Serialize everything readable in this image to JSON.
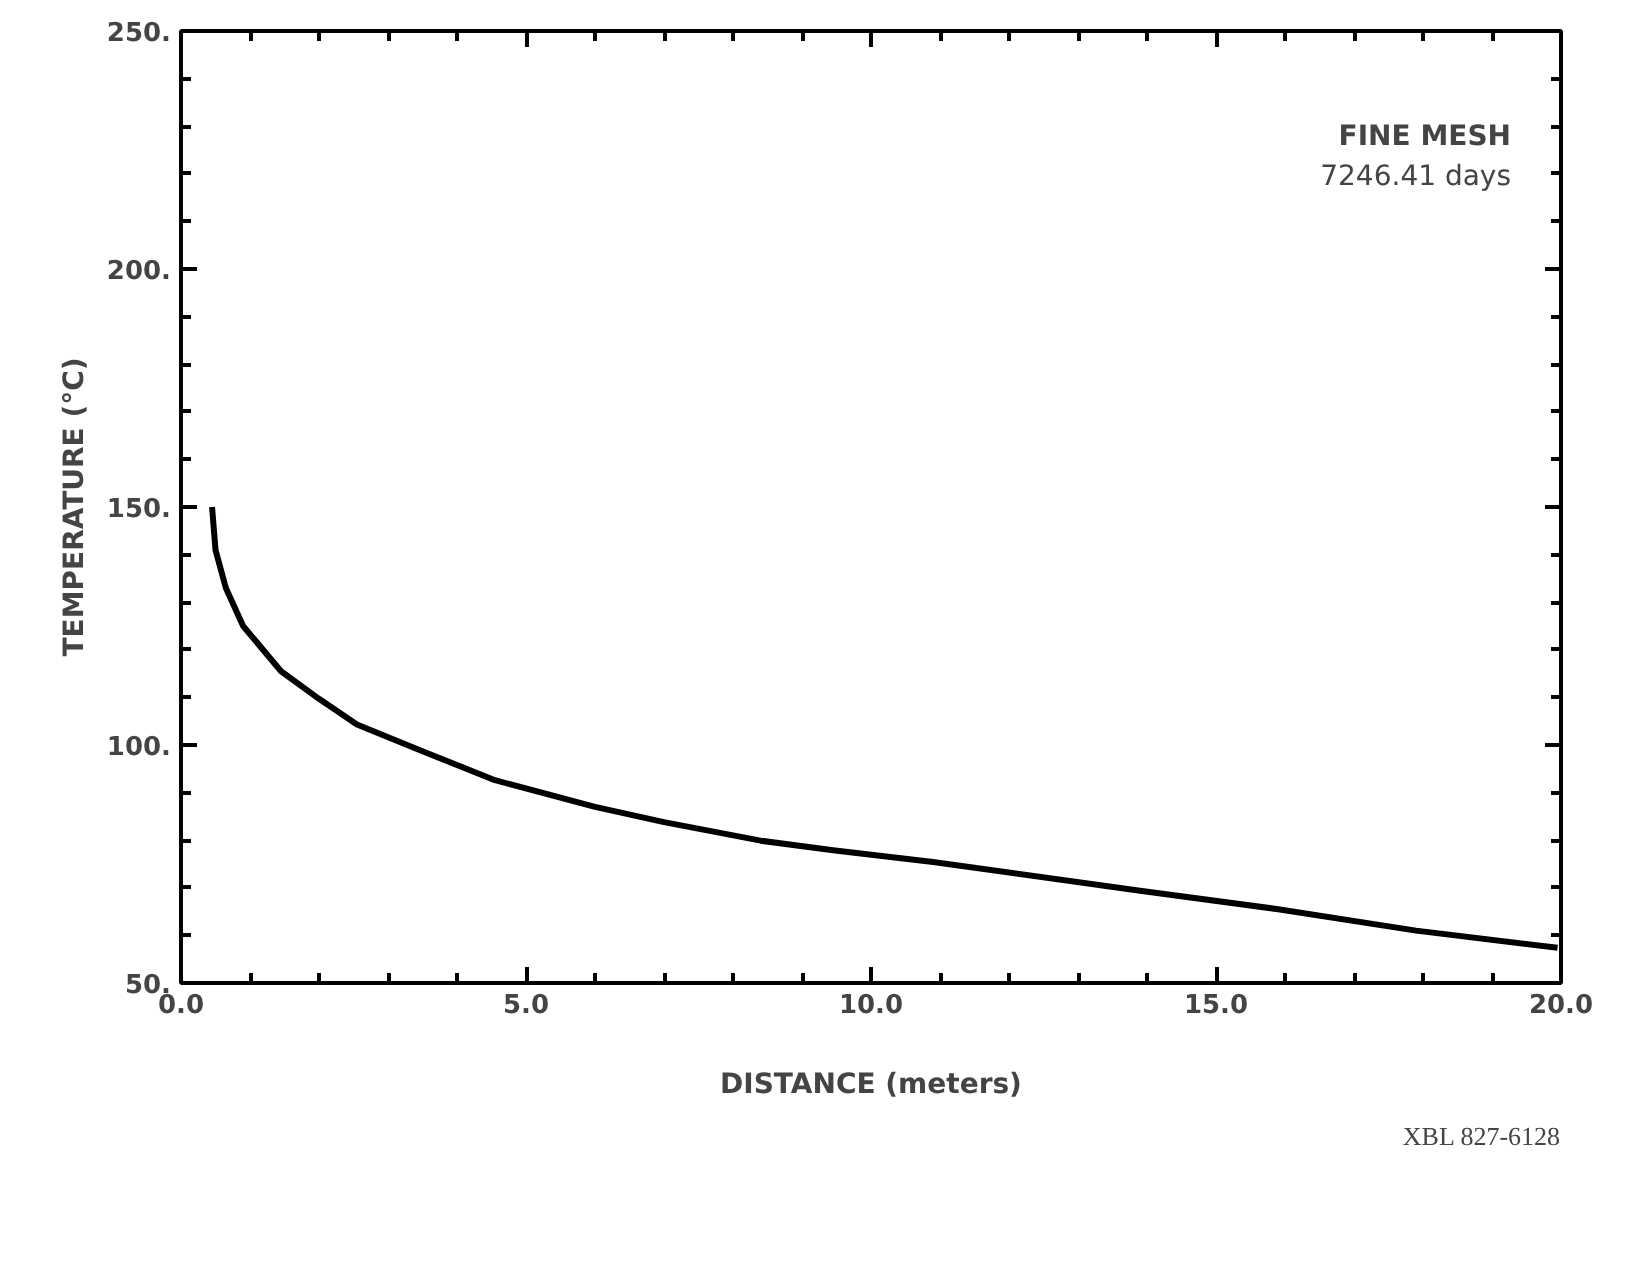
{
  "chart_data": {
    "type": "line",
    "xlabel": "DISTANCE (meters)",
    "ylabel": "TEMPERATURE (°C)",
    "x": [
      0.45,
      0.45,
      0.5,
      0.65,
      0.9,
      1.45,
      2.0,
      2.55,
      3.5,
      4.55,
      6.0,
      7.0,
      8.4,
      9.45,
      10.9,
      13.9,
      15.9,
      17.9,
      19.95
    ],
    "series": [
      {
        "color": "#000000",
        "values": [
          150,
          150,
          141,
          133,
          125,
          115.5,
          109.7,
          104.3,
          98.7,
          92.6,
          87.0,
          83.8,
          79.9,
          77.9,
          75.4,
          69.4,
          65.5,
          61.0,
          57.4
        ]
      }
    ],
    "xlim": [
      0,
      20
    ],
    "ylim": [
      50,
      250
    ],
    "xticks": [
      {
        "value": 0,
        "label": "0.0"
      },
      {
        "value": 5,
        "label": "5.0"
      },
      {
        "value": 10,
        "label": "10.0"
      },
      {
        "value": 15,
        "label": "15.0"
      },
      {
        "value": 20,
        "label": "20.0"
      }
    ],
    "yticks": [
      {
        "value": 50,
        "label": "50."
      },
      {
        "value": 100,
        "label": "100."
      },
      {
        "value": 150,
        "label": "150."
      },
      {
        "value": 200,
        "label": "200."
      },
      {
        "value": 250,
        "label": "250."
      }
    ],
    "grid": false,
    "marker": "none",
    "line_style": "solid",
    "annotations": [
      "FINE MESH",
      "7246.41 days",
      "XBL 827-6128"
    ]
  }
}
